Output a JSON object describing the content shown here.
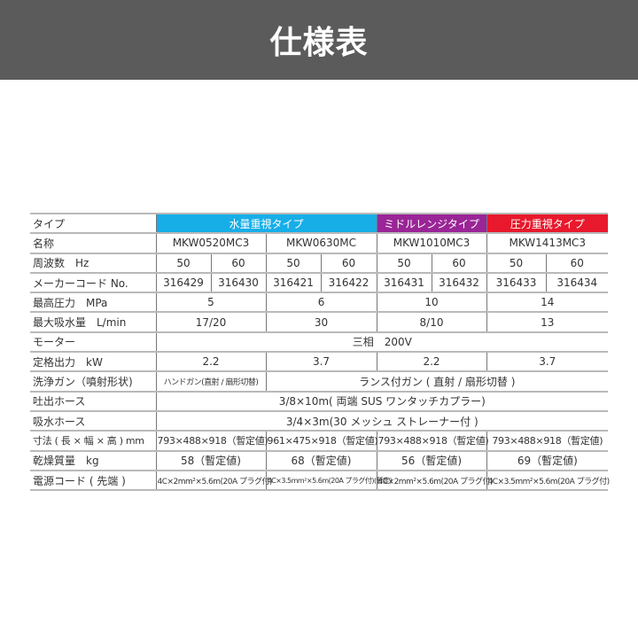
{
  "title": "仕様表",
  "colors": {
    "header": "#5b5b5b",
    "water": "#17aee8",
    "middle": "#9a2596",
    "pressure": "#e8192c"
  },
  "types": [
    "水量重視タイプ",
    "ミドルレンジタイプ",
    "圧力重視タイプ"
  ],
  "labels": [
    "タイプ",
    "名称",
    "周波数　Hz",
    "メーカーコード No.",
    "最高圧力　MPa",
    "最大吸水量　L/min",
    "モーター",
    "定格出力　kW",
    "洗浄ガン（噴射形状)",
    "吐出ホース",
    "吸水ホース",
    "寸法 ( 長 × 幅 × 高 ) mm",
    "乾燥質量　kg",
    "電源コード ( 先端 )"
  ],
  "models": [
    "MKW0520MC3",
    "MKW0630MC",
    "MKW1010MC3",
    "MKW1413MC3"
  ],
  "hz": [
    "50",
    "60",
    "50",
    "60",
    "50",
    "60",
    "50",
    "60"
  ],
  "codes": [
    "316429",
    "316430",
    "316421",
    "316422",
    "316431",
    "316432",
    "316433",
    "316434"
  ],
  "pressure": [
    "5",
    "6",
    "10",
    "14"
  ],
  "suction": [
    "17/20",
    "30",
    "8/10",
    "13"
  ],
  "motor": "三相　200V",
  "output": [
    "2.2",
    "3.7",
    "2.2",
    "3.7"
  ],
  "gun": [
    "ハンドガン(直射 / 扇形切替)",
    "ランス付ガン ( 直射 / 扇形切替 )"
  ],
  "discharge_hose": "3/8×10m( 両端 SUS ワンタッチカプラー)",
  "suction_hose": "3/4×3m(30 メッシュ ストレーナー付 )",
  "dimensions": [
    "793×488×918（暫定値)",
    "961×475×918（暫定値)",
    "793×488×918（暫定値)",
    "793×488×918（暫定値)"
  ],
  "weight": [
    "58（暫定値)",
    "68（暫定値)",
    "56（暫定値)",
    "69（暫定値)"
  ],
  "cord": [
    "4C×2mm²×5.6m(20A プラグ付)",
    "4C×3.5mm²×5.6m(20A プラグ付)(暫定)",
    "4C×2mm²×5.6m(20A プラグ付)",
    "4C×3.5mm²×5.6m(20A プラグ付)"
  ]
}
